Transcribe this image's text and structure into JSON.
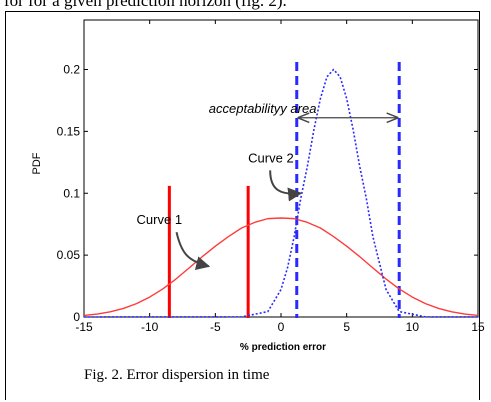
{
  "page": {
    "top_text": "for for a given prediction horizon (fig. 2).",
    "caption": "Fig. 2.  Error dispersion in time"
  },
  "chart_data": {
    "type": "line",
    "title": "",
    "xlabel": "% prediction error",
    "ylabel": "PDF",
    "xlim": [
      -15,
      15
    ],
    "ylim": [
      0,
      0.24
    ],
    "xticks": [
      -15,
      -10,
      -5,
      0,
      5,
      10,
      15
    ],
    "yticks": [
      0,
      0.05,
      0.1,
      0.15,
      0.2
    ],
    "ytick_labels": [
      "0",
      "0.05",
      "0.1",
      "0.15",
      "0.2"
    ],
    "grid": false,
    "series": [
      {
        "name": "Curve 1",
        "color": "#ff3b3b",
        "line_style": "solid",
        "x": [
          -15,
          -14,
          -13,
          -12,
          -11,
          -10,
          -9,
          -8,
          -7,
          -6,
          -5,
          -4,
          -3,
          -2,
          -1,
          0,
          1,
          2,
          3,
          4,
          5,
          6,
          7,
          8,
          9,
          10,
          11,
          12,
          13,
          14,
          15
        ],
        "y": [
          0.0013,
          0.0024,
          0.0042,
          0.0069,
          0.0108,
          0.0161,
          0.0227,
          0.0307,
          0.0396,
          0.0487,
          0.0572,
          0.065,
          0.0719,
          0.0765,
          0.0795,
          0.08,
          0.0795,
          0.0765,
          0.0719,
          0.065,
          0.0572,
          0.0487,
          0.0396,
          0.0307,
          0.0227,
          0.0161,
          0.0108,
          0.0069,
          0.0042,
          0.0024,
          0.0013
        ]
      },
      {
        "name": "Curve 2",
        "color": "#2a2aff",
        "line_style": "dotted",
        "x": [
          -15,
          -3,
          -1,
          0,
          0.5,
          1,
          1.5,
          2,
          2.5,
          3,
          3.5,
          4,
          4.5,
          5,
          5.5,
          6,
          6.5,
          7,
          8,
          9,
          11,
          15
        ],
        "y": [
          0,
          0.0001,
          0.0044,
          0.0222,
          0.0399,
          0.0648,
          0.0956,
          0.1213,
          0.151,
          0.1765,
          0.1941,
          0.2,
          0.1941,
          0.1765,
          0.151,
          0.1213,
          0.0956,
          0.0648,
          0.0222,
          0.0044,
          0.0001,
          0
        ]
      }
    ],
    "annotations": [
      {
        "text": "Curve 1",
        "x": -11,
        "y": 0.075,
        "arrow_to_x": -5.5,
        "arrow_to_y": 0.041
      },
      {
        "text": "Curve 2",
        "x": -2.5,
        "y": 0.125,
        "arrow_to_x": 1.5,
        "arrow_to_y": 0.1
      },
      {
        "text": "acceptabilityy area",
        "x": -5.5,
        "y": 0.165,
        "arrow_from_x": 1.2,
        "arrow_to_x": 9,
        "arrow_y": 0.161
      }
    ],
    "vertical_lines": [
      {
        "x": -8.5,
        "color": "#ff0000",
        "style": "solid"
      },
      {
        "x": -2.5,
        "color": "#ff0000",
        "style": "solid"
      },
      {
        "x": 1.2,
        "color": "#2a2aff",
        "style": "dashed"
      },
      {
        "x": 9,
        "color": "#2a2aff",
        "style": "dashed"
      }
    ]
  }
}
